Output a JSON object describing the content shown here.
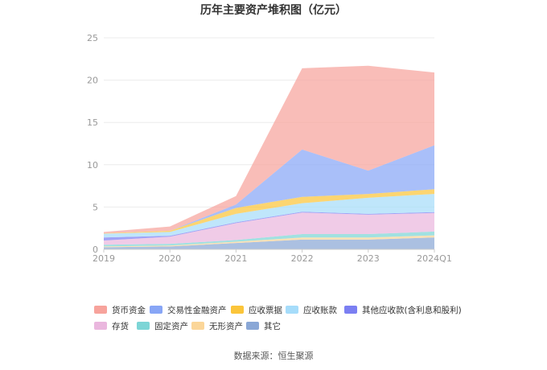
{
  "title": "历年主要资产堆积图（亿元）",
  "source": "数据来源：恒生聚源",
  "chart_data": {
    "type": "area",
    "stacked": true,
    "title": "历年主要资产堆积图（亿元）",
    "xlabel": "",
    "ylabel": "",
    "unit": "亿元",
    "categories": [
      "2019",
      "2020",
      "2021",
      "2022",
      "2023",
      "2024Q1"
    ],
    "ylim": [
      0,
      25
    ],
    "yticks": [
      0,
      5,
      10,
      15,
      20,
      25
    ],
    "grid": true,
    "legend_position": "bottom",
    "series": [
      {
        "name": "货币资金",
        "color": "#f7a39c",
        "values": [
          0.15,
          0.5,
          1.0,
          9.6,
          12.4,
          8.6
        ]
      },
      {
        "name": "交易性金融资产",
        "color": "#88a6f6",
        "values": [
          0,
          0,
          0.4,
          5.6,
          2.75,
          5.2
        ]
      },
      {
        "name": "应收票据",
        "color": "#fbc53a",
        "values": [
          0.05,
          0.15,
          0.7,
          0.75,
          0.45,
          0.55
        ]
      },
      {
        "name": "应收账款",
        "color": "#a6dcfa",
        "values": [
          0.45,
          0.45,
          1.0,
          1.0,
          1.9,
          2.15
        ]
      },
      {
        "name": "其他应收款(含利息和股利)",
        "color": "#7b7ff2",
        "values": [
          0.35,
          0.1,
          0.1,
          0.1,
          0.1,
          0.1
        ]
      },
      {
        "name": "存货",
        "color": "#eab7de",
        "values": [
          0.5,
          0.85,
          2.0,
          2.55,
          2.3,
          2.2
        ]
      },
      {
        "name": "固定资产",
        "color": "#7dd5d6",
        "values": [
          0.2,
          0.2,
          0.2,
          0.4,
          0.4,
          0.45
        ]
      },
      {
        "name": "无形资产",
        "color": "#fbd699",
        "values": [
          0.1,
          0.1,
          0.15,
          0.25,
          0.25,
          0.25
        ]
      },
      {
        "name": "其它",
        "color": "#8aa7d6",
        "values": [
          0.25,
          0.35,
          0.75,
          1.15,
          1.15,
          1.4
        ]
      }
    ]
  }
}
